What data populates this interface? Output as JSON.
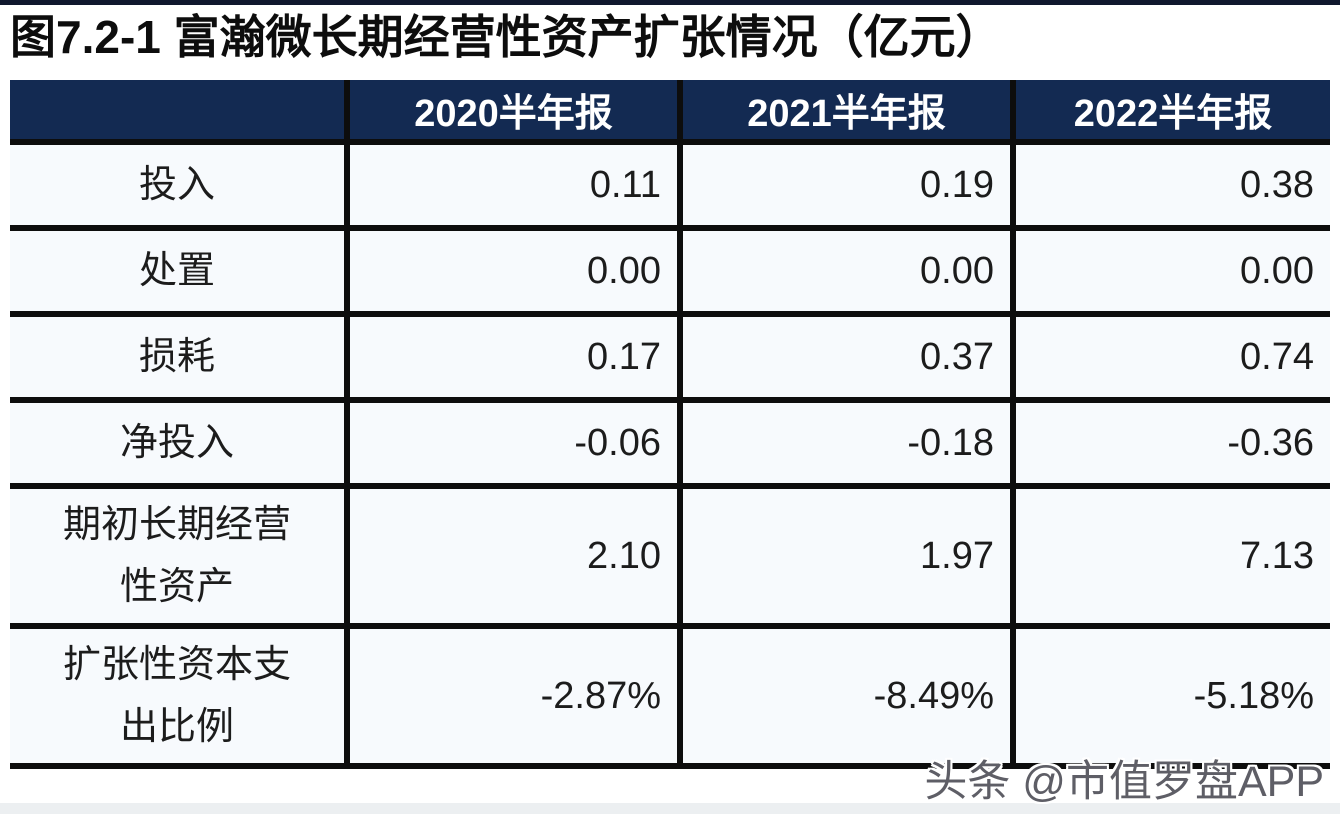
{
  "page": {
    "title": "图7.2-1 富瀚微长期经营性资产扩张情况（亿元）",
    "watermark": "头条 @市值罗盘APP"
  },
  "colors": {
    "header_bg": "#132A52",
    "header_text": "#FFFFFF",
    "border": "#0D0D0D",
    "cell_bg": "#F7FAFD",
    "body_text": "#1C1C1C",
    "watermark_text": "#5E5E66",
    "top_bar": "#10182E"
  },
  "table": {
    "corner_label": "",
    "columns": [
      "2020半年报",
      "2021半年报",
      "2022半年报"
    ],
    "rows": [
      {
        "label": "投入",
        "values": [
          "0.11",
          "0.19",
          "0.38"
        ]
      },
      {
        "label": "处置",
        "values": [
          "0.00",
          "0.00",
          "0.00"
        ]
      },
      {
        "label": "损耗",
        "values": [
          "0.17",
          "0.37",
          "0.74"
        ]
      },
      {
        "label": "净投入",
        "values": [
          "-0.06",
          "-0.18",
          "-0.36"
        ]
      },
      {
        "label": "期初长期经营性资产",
        "values": [
          "2.10",
          "1.97",
          "7.13"
        ]
      },
      {
        "label": "扩张性资本支出比例",
        "values": [
          "-2.87%",
          "-8.49%",
          "-5.18%"
        ]
      }
    ]
  },
  "chart_data": {
    "type": "table",
    "title": "图7.2-1 富瀚微长期经营性资产扩张情况（亿元）",
    "unit": "亿元",
    "categories": [
      "2020半年报",
      "2021半年报",
      "2022半年报"
    ],
    "series": [
      {
        "name": "投入",
        "values": [
          0.11,
          0.19,
          0.38
        ]
      },
      {
        "name": "处置",
        "values": [
          0.0,
          0.0,
          0.0
        ]
      },
      {
        "name": "损耗",
        "values": [
          0.17,
          0.37,
          0.74
        ]
      },
      {
        "name": "净投入",
        "values": [
          -0.06,
          -0.18,
          -0.36
        ]
      },
      {
        "name": "期初长期经营性资产",
        "values": [
          2.1,
          1.97,
          7.13
        ]
      },
      {
        "name": "扩张性资本支出比例(%)",
        "values": [
          -2.87,
          -8.49,
          -5.18
        ]
      }
    ]
  }
}
